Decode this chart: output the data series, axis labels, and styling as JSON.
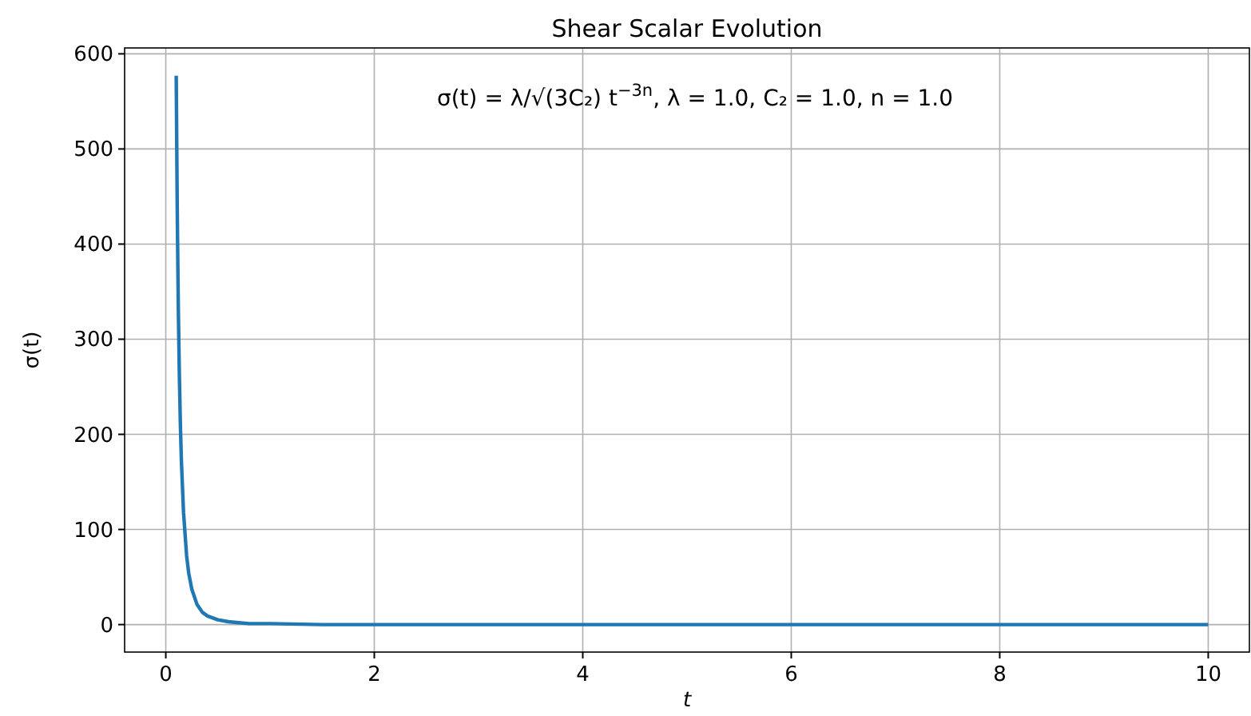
{
  "chart_data": {
    "type": "line",
    "title": "Shear Scalar Evolution",
    "xlabel": "t",
    "ylabel": "σ(t)",
    "annotations": [
      "σ(t) = λ/√(3C₂) t$^{−3n}$,  λ = 1.0,  C₂ = 1.0,  n = 1.0"
    ],
    "x": [
      0.1,
      0.11,
      0.12,
      0.13,
      0.14,
      0.15,
      0.17,
      0.2,
      0.22,
      0.25,
      0.3,
      0.35,
      0.4,
      0.5,
      0.6,
      0.7,
      0.8,
      1,
      1.5,
      2,
      3,
      4,
      5,
      6,
      7,
      8,
      9,
      10
    ],
    "series": [
      {
        "color": "#1f77b4",
        "values": [
          577,
          434,
          334,
          263,
          210,
          171,
          118,
          72,
          54,
          37,
          21,
          13,
          9,
          5,
          3,
          2,
          1,
          1,
          0,
          0,
          0,
          0,
          0,
          0,
          0,
          0,
          0,
          0
        ]
      }
    ],
    "xlim": [
      -0.395,
      10.395
    ],
    "ylim": [
      -28.9,
      606.2
    ],
    "xticks": [
      0,
      2,
      4,
      6,
      8,
      10
    ],
    "yticks": [
      0,
      100,
      200,
      300,
      400,
      500,
      600
    ],
    "grid": true,
    "marker": "none",
    "line_style": "solid"
  }
}
